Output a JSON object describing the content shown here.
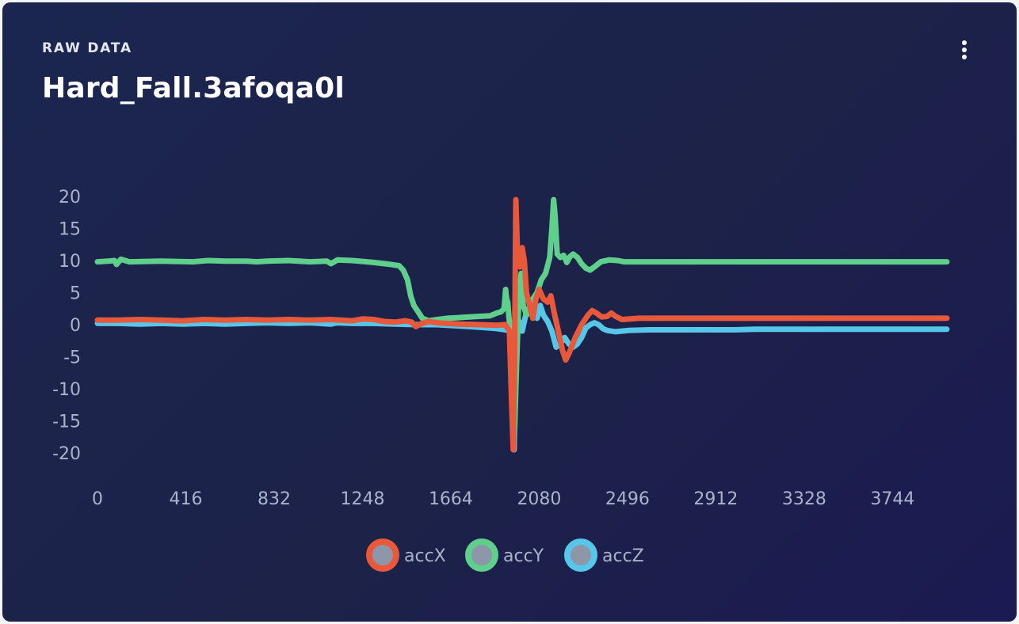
{
  "card": {
    "eyebrow": "RAW DATA",
    "title": "Hard_Fall.3afoqa0l"
  },
  "icons": {
    "menu": "more-vertical-icon"
  },
  "colors": {
    "background": "#1c2248",
    "tick_text": "#aab3c9",
    "accX": "#e8583a",
    "accY": "#5fcf8c",
    "accZ": "#56c7e8"
  },
  "chart_data": {
    "type": "line",
    "title": "",
    "xlabel": "",
    "ylabel": "",
    "xlim": [
      0,
      4000
    ],
    "ylim": [
      -20,
      20
    ],
    "x_ticks": [
      0,
      416,
      832,
      1248,
      1664,
      2080,
      2496,
      2912,
      3328,
      3744
    ],
    "y_ticks": [
      20,
      15,
      10,
      5,
      0,
      -5,
      -10,
      -15,
      -20
    ],
    "grid": false,
    "legend": "bottom-center",
    "series": [
      {
        "name": "accX",
        "color": "#e8583a",
        "points": [
          [
            0,
            0.7
          ],
          [
            100,
            0.7
          ],
          [
            200,
            0.8
          ],
          [
            300,
            0.7
          ],
          [
            400,
            0.6
          ],
          [
            500,
            0.8
          ],
          [
            600,
            0.7
          ],
          [
            700,
            0.8
          ],
          [
            800,
            0.7
          ],
          [
            900,
            0.8
          ],
          [
            1000,
            0.7
          ],
          [
            1100,
            0.8
          ],
          [
            1200,
            0.6
          ],
          [
            1250,
            0.9
          ],
          [
            1300,
            0.8
          ],
          [
            1350,
            0.5
          ],
          [
            1400,
            0.4
          ],
          [
            1450,
            0.6
          ],
          [
            1480,
            0.4
          ],
          [
            1500,
            -0.3
          ],
          [
            1520,
            0.1
          ],
          [
            1560,
            0.5
          ],
          [
            1600,
            0.3
          ],
          [
            1700,
            0.1
          ],
          [
            1800,
            0.0
          ],
          [
            1880,
            -0.1
          ],
          [
            1920,
            0.0
          ],
          [
            1940,
            -1.0
          ],
          [
            1950,
            -12.0
          ],
          [
            1958,
            -19.5
          ],
          [
            1964,
            -5.0
          ],
          [
            1970,
            19.5
          ],
          [
            1978,
            11.0
          ],
          [
            1990,
            9.0
          ],
          [
            2000,
            12.0
          ],
          [
            2010,
            10.0
          ],
          [
            2020,
            5.0
          ],
          [
            2035,
            3.0
          ],
          [
            2050,
            1.0
          ],
          [
            2065,
            4.0
          ],
          [
            2080,
            5.5
          ],
          [
            2100,
            4.0
          ],
          [
            2120,
            3.5
          ],
          [
            2135,
            4.5
          ],
          [
            2150,
            2.0
          ],
          [
            2170,
            -1.0
          ],
          [
            2190,
            -4.0
          ],
          [
            2205,
            -5.5
          ],
          [
            2220,
            -4.5
          ],
          [
            2250,
            -2.0
          ],
          [
            2280,
            0.0
          ],
          [
            2310,
            1.5
          ],
          [
            2330,
            2.2
          ],
          [
            2350,
            1.8
          ],
          [
            2375,
            1.2
          ],
          [
            2400,
            1.3
          ],
          [
            2420,
            1.8
          ],
          [
            2440,
            1.3
          ],
          [
            2470,
            0.8
          ],
          [
            2550,
            1.0
          ],
          [
            2700,
            1.0
          ],
          [
            2900,
            1.0
          ],
          [
            3100,
            1.0
          ],
          [
            3300,
            1.0
          ],
          [
            3500,
            1.0
          ],
          [
            3700,
            1.0
          ],
          [
            3900,
            1.0
          ],
          [
            4000,
            1.0
          ]
        ]
      },
      {
        "name": "accY",
        "color": "#5fcf8c",
        "points": [
          [
            0,
            9.8
          ],
          [
            50,
            9.9
          ],
          [
            80,
            10.0
          ],
          [
            90,
            9.4
          ],
          [
            100,
            9.8
          ],
          [
            110,
            10.2
          ],
          [
            150,
            9.8
          ],
          [
            300,
            9.9
          ],
          [
            450,
            9.8
          ],
          [
            520,
            10.0
          ],
          [
            600,
            9.9
          ],
          [
            700,
            9.9
          ],
          [
            750,
            9.8
          ],
          [
            800,
            9.9
          ],
          [
            900,
            10.0
          ],
          [
            1000,
            9.8
          ],
          [
            1080,
            9.9
          ],
          [
            1100,
            9.5
          ],
          [
            1130,
            10.1
          ],
          [
            1200,
            10.0
          ],
          [
            1300,
            9.7
          ],
          [
            1380,
            9.4
          ],
          [
            1420,
            9.2
          ],
          [
            1440,
            8.5
          ],
          [
            1460,
            7.0
          ],
          [
            1475,
            4.5
          ],
          [
            1490,
            3.0
          ],
          [
            1510,
            2.0
          ],
          [
            1530,
            1.0
          ],
          [
            1560,
            0.6
          ],
          [
            1600,
            0.8
          ],
          [
            1650,
            1.0
          ],
          [
            1700,
            1.1
          ],
          [
            1750,
            1.2
          ],
          [
            1800,
            1.3
          ],
          [
            1850,
            1.4
          ],
          [
            1880,
            1.8
          ],
          [
            1900,
            2.0
          ],
          [
            1915,
            2.5
          ],
          [
            1922,
            5.5
          ],
          [
            1927,
            4.0
          ],
          [
            1932,
            3.5
          ],
          [
            1938,
            1.0
          ],
          [
            1945,
            -1.0
          ],
          [
            1955,
            -5.0
          ],
          [
            1965,
            -16.0
          ],
          [
            1972,
            -8.0
          ],
          [
            1978,
            -2.0
          ],
          [
            1985,
            5.0
          ],
          [
            1995,
            8.0
          ],
          [
            2005,
            3.0
          ],
          [
            2020,
            1.5
          ],
          [
            2035,
            2.0
          ],
          [
            2050,
            4.0
          ],
          [
            2070,
            5.0
          ],
          [
            2090,
            7.0
          ],
          [
            2110,
            8.0
          ],
          [
            2130,
            10.5
          ],
          [
            2140,
            15.0
          ],
          [
            2148,
            19.5
          ],
          [
            2155,
            17.0
          ],
          [
            2165,
            11.0
          ],
          [
            2180,
            10.5
          ],
          [
            2195,
            10.8
          ],
          [
            2210,
            9.7
          ],
          [
            2225,
            10.6
          ],
          [
            2240,
            11.0
          ],
          [
            2260,
            10.5
          ],
          [
            2280,
            9.5
          ],
          [
            2300,
            8.8
          ],
          [
            2320,
            8.5
          ],
          [
            2340,
            9.0
          ],
          [
            2370,
            9.8
          ],
          [
            2410,
            10.1
          ],
          [
            2450,
            10.0
          ],
          [
            2480,
            9.8
          ],
          [
            2550,
            9.8
          ],
          [
            2700,
            9.8
          ],
          [
            2900,
            9.8
          ],
          [
            3100,
            9.8
          ],
          [
            3300,
            9.8
          ],
          [
            3500,
            9.8
          ],
          [
            3700,
            9.8
          ],
          [
            3900,
            9.8
          ],
          [
            4000,
            9.8
          ]
        ]
      },
      {
        "name": "accZ",
        "color": "#56c7e8",
        "points": [
          [
            0,
            0.2
          ],
          [
            100,
            0.2
          ],
          [
            200,
            0.1
          ],
          [
            300,
            0.2
          ],
          [
            400,
            0.1
          ],
          [
            500,
            0.2
          ],
          [
            600,
            0.1
          ],
          [
            700,
            0.2
          ],
          [
            800,
            0.3
          ],
          [
            900,
            0.2
          ],
          [
            1000,
            0.3
          ],
          [
            1100,
            0.1
          ],
          [
            1130,
            0.3
          ],
          [
            1200,
            0.2
          ],
          [
            1300,
            0.2
          ],
          [
            1400,
            0.1
          ],
          [
            1500,
            0.0
          ],
          [
            1600,
            0.0
          ],
          [
            1700,
            -0.2
          ],
          [
            1800,
            -0.4
          ],
          [
            1880,
            -0.6
          ],
          [
            1920,
            -0.8
          ],
          [
            1945,
            -1.0
          ],
          [
            1955,
            -13.0
          ],
          [
            1962,
            -19.5
          ],
          [
            1968,
            -10.0
          ],
          [
            1972,
            3.0
          ],
          [
            1980,
            1.0
          ],
          [
            1990,
            0.0
          ],
          [
            2000,
            -1.0
          ],
          [
            2020,
            2.0
          ],
          [
            2040,
            3.0
          ],
          [
            2055,
            2.0
          ],
          [
            2070,
            1.0
          ],
          [
            2085,
            3.0
          ],
          [
            2100,
            1.5
          ],
          [
            2120,
            0.5
          ],
          [
            2140,
            -1.0
          ],
          [
            2160,
            -3.5
          ],
          [
            2180,
            -3.0
          ],
          [
            2200,
            -2.0
          ],
          [
            2220,
            -3.0
          ],
          [
            2240,
            -3.5
          ],
          [
            2260,
            -3.0
          ],
          [
            2280,
            -2.0
          ],
          [
            2300,
            -0.5
          ],
          [
            2320,
            0.0
          ],
          [
            2340,
            0.3
          ],
          [
            2360,
            0.0
          ],
          [
            2380,
            -0.6
          ],
          [
            2400,
            -0.9
          ],
          [
            2440,
            -1.1
          ],
          [
            2500,
            -0.9
          ],
          [
            2600,
            -0.8
          ],
          [
            2700,
            -0.8
          ],
          [
            2800,
            -0.8
          ],
          [
            2900,
            -0.8
          ],
          [
            3000,
            -0.8
          ],
          [
            3100,
            -0.7
          ],
          [
            3200,
            -0.7
          ],
          [
            3300,
            -0.7
          ],
          [
            3400,
            -0.7
          ],
          [
            3500,
            -0.7
          ],
          [
            3600,
            -0.7
          ],
          [
            3700,
            -0.7
          ],
          [
            3800,
            -0.7
          ],
          [
            3900,
            -0.7
          ],
          [
            4000,
            -0.7
          ]
        ]
      }
    ]
  }
}
